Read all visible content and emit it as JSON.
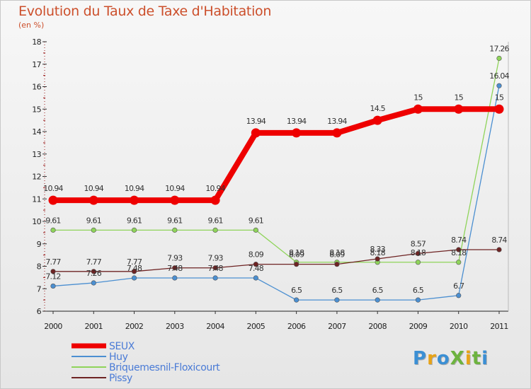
{
  "title": "Evolution du Taux de Taxe d'Habitation",
  "unit": "(en %)",
  "logo": {
    "text": "ProXiti",
    "letters": [
      {
        "ch": "P",
        "color": "#3b8fd4"
      },
      {
        "ch": "r",
        "color": "#e8a317"
      },
      {
        "ch": "o",
        "color": "#3b8fd4"
      },
      {
        "ch": "X",
        "color": "#6db33f"
      },
      {
        "ch": "i",
        "color": "#e8a317"
      },
      {
        "ch": "t",
        "color": "#6db33f"
      },
      {
        "ch": "i",
        "color": "#3b8fd4"
      }
    ]
  },
  "chart_data": {
    "type": "line",
    "x": [
      "2000",
      "2001",
      "2002",
      "2003",
      "2004",
      "2005",
      "2006",
      "2007",
      "2008",
      "2009",
      "2010",
      "2011"
    ],
    "ylim": [
      6,
      18
    ],
    "yticks": [
      "6",
      "7",
      "8",
      "9",
      "10",
      "11",
      "12",
      "13",
      "14",
      "15",
      "16",
      "17",
      "18"
    ],
    "title": "Evolution du Taux de Taxe d'Habitation",
    "ylabel": "(en %)",
    "legend_position": "bottom-left",
    "series": [
      {
        "name": "SEUX",
        "color": "#ee0000",
        "values": [
          10.94,
          10.94,
          10.94,
          10.94,
          10.94,
          13.94,
          13.94,
          13.94,
          14.5,
          15,
          15,
          15
        ],
        "labels": [
          "10.94",
          "10.94",
          "10.94",
          "10.94",
          "10.94",
          "13.94",
          "13.94",
          "13.94",
          "14.5",
          "15",
          "15",
          "15"
        ]
      },
      {
        "name": "Huy",
        "color": "#4b8fd1",
        "values": [
          7.12,
          7.26,
          7.48,
          7.48,
          7.48,
          7.48,
          6.5,
          6.5,
          6.5,
          6.5,
          6.7,
          16.04
        ],
        "labels": [
          "7.12",
          "7.26",
          "7.48",
          "7.48",
          "7.48",
          "7.48",
          "6.5",
          "6.5",
          "6.5",
          "6.5",
          "6.7",
          "16.04"
        ]
      },
      {
        "name": "Briquemesnil-Floxicourt",
        "color": "#8fd45a",
        "values": [
          9.61,
          9.61,
          9.61,
          9.61,
          9.61,
          9.61,
          8.18,
          8.18,
          8.18,
          8.18,
          8.18,
          17.26
        ],
        "labels": [
          "9.61",
          "9.61",
          "9.61",
          "9.61",
          "9.61",
          "9.61",
          "8.18",
          "8.18",
          "8.18",
          "8.18",
          "8.18",
          "17.26"
        ]
      },
      {
        "name": "Pissy",
        "color": "#6e2323",
        "values": [
          7.77,
          7.77,
          7.77,
          7.93,
          7.93,
          8.09,
          8.09,
          8.09,
          8.33,
          8.57,
          8.74,
          8.74
        ],
        "labels": [
          "7.77",
          "7.77",
          "7.77",
          "7.93",
          "7.93",
          "8.09",
          "8.09",
          "8.09",
          "8.33",
          "8.57",
          "8.74",
          "8.74"
        ]
      }
    ]
  }
}
